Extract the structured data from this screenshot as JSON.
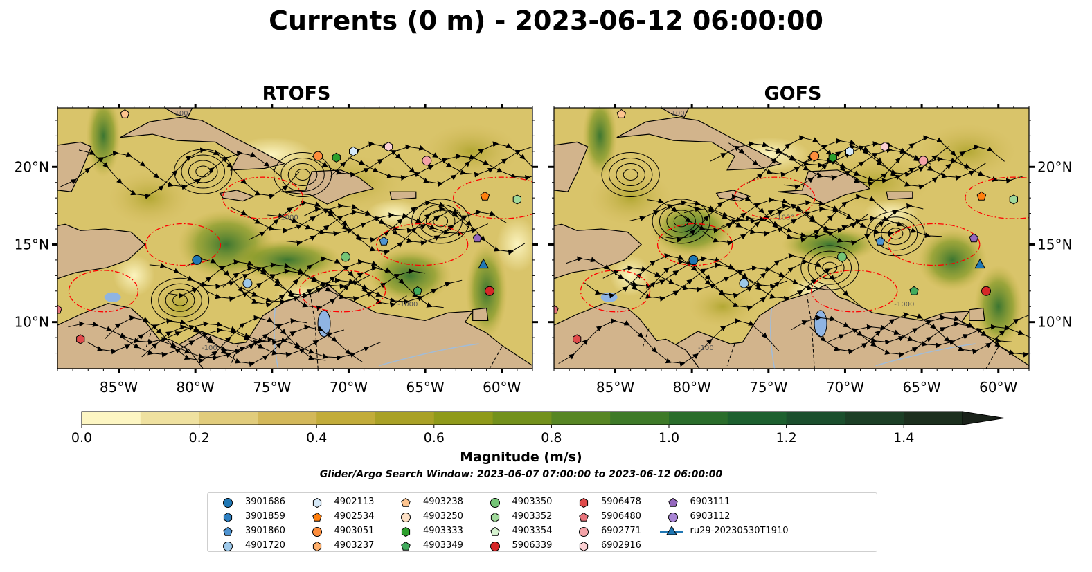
{
  "title": "Currents (0 m) - 2023-06-12 06:00:00",
  "panels": [
    {
      "title": "RTOFS"
    },
    {
      "title": "GOFS"
    }
  ],
  "axes": {
    "x_ticks": [
      "85°W",
      "80°W",
      "75°W",
      "70°W",
      "65°W",
      "60°W"
    ],
    "y_ticks": [
      "20°N",
      "15°N",
      "10°N"
    ]
  },
  "colorbar": {
    "label": "Magnitude (m/s)",
    "ticks": [
      "0.0",
      "0.2",
      "0.4",
      "0.6",
      "0.8",
      "1.0",
      "1.2",
      "1.4"
    ],
    "range": [
      0.0,
      1.5
    ],
    "extend": "max",
    "colors": [
      "#fdf6c3",
      "#efe1a0",
      "#e1cc7c",
      "#d3b85a",
      "#c2ac3a",
      "#a9a126",
      "#8f9a1a",
      "#73911c",
      "#578624",
      "#3e7a28",
      "#2a6d2b",
      "#1d602f",
      "#1b4f2d",
      "#1c3f26",
      "#1c2f1e",
      "#1a221a"
    ]
  },
  "search_window": "Glider/Argo Search Window: 2023-06-07 07:00:00 to 2023-06-12 06:00:00",
  "contour_labels": [
    "-100",
    "-1000",
    "-1000",
    "-100"
  ],
  "map_colors": {
    "land": "#d2b48c",
    "lake": "#8fb4e3",
    "river": "#a3bcd6",
    "ocean_low": "#fdf6c3",
    "ocean_mid": "#c8b040",
    "ocean_high": "#2f7a30",
    "eddy_line": "#ff0000"
  },
  "legend": [
    {
      "id": "3901686",
      "marker": "circle",
      "color": "#1f77b4"
    },
    {
      "id": "3901859",
      "marker": "hexagon",
      "color": "#2e7fc0"
    },
    {
      "id": "3901860",
      "marker": "pentagon",
      "color": "#4f93d0"
    },
    {
      "id": "4901720",
      "marker": "circle",
      "color": "#9ec9ea"
    },
    {
      "id": "4902113",
      "marker": "hexagon",
      "color": "#d6e9f8"
    },
    {
      "id": "4902534",
      "marker": "pentagon",
      "color": "#ff7f0e"
    },
    {
      "id": "4903051",
      "marker": "circle",
      "color": "#fd8d3c"
    },
    {
      "id": "4903237",
      "marker": "hexagon",
      "color": "#fdae6b"
    },
    {
      "id": "4903238",
      "marker": "pentagon",
      "color": "#fdc48f"
    },
    {
      "id": "4903250",
      "marker": "circle",
      "color": "#fde0c5"
    },
    {
      "id": "4903333",
      "marker": "hexagon",
      "color": "#2ca02c"
    },
    {
      "id": "4903349",
      "marker": "pentagon",
      "color": "#41ab5d"
    },
    {
      "id": "4903350",
      "marker": "circle",
      "color": "#74c476"
    },
    {
      "id": "4903352",
      "marker": "hexagon",
      "color": "#a1d99b"
    },
    {
      "id": "4903354",
      "marker": "pentagon",
      "color": "#d5f2cf"
    },
    {
      "id": "5906339",
      "marker": "circle",
      "color": "#d62728"
    },
    {
      "id": "5906478",
      "marker": "hexagon",
      "color": "#e04b4b"
    },
    {
      "id": "5906480",
      "marker": "pentagon",
      "color": "#e8747c"
    },
    {
      "id": "6902771",
      "marker": "circle",
      "color": "#f4a3a8"
    },
    {
      "id": "6902916",
      "marker": "hexagon",
      "color": "#fbcfd2"
    },
    {
      "id": "6903111",
      "marker": "pentagon",
      "color": "#9467bd"
    },
    {
      "id": "6903112",
      "marker": "circle",
      "color": "#a884d4"
    },
    {
      "id": "ru29-20230530T1910",
      "marker": "triangle-line",
      "color": "#1f77b4"
    }
  ],
  "map_markers": [
    {
      "legend_id": "3901686",
      "lon": -79.9,
      "lat": 14.0
    },
    {
      "legend_id": "3901860",
      "lon": -67.7,
      "lat": 15.2
    },
    {
      "legend_id": "4901720",
      "lon": -76.6,
      "lat": 12.5
    },
    {
      "legend_id": "4902113",
      "lon": -69.7,
      "lat": 21.0
    },
    {
      "legend_id": "4902534",
      "lon": -61.1,
      "lat": 18.1
    },
    {
      "legend_id": "4903051",
      "lon": -72.0,
      "lat": 20.7
    },
    {
      "legend_id": "4903238",
      "lon": -84.6,
      "lat": 23.4
    },
    {
      "legend_id": "4903333",
      "lon": -70.8,
      "lat": 20.6
    },
    {
      "legend_id": "4903349",
      "lon": -65.5,
      "lat": 12.0
    },
    {
      "legend_id": "4903350",
      "lon": -70.2,
      "lat": 14.2
    },
    {
      "legend_id": "4903352",
      "lon": -59.0,
      "lat": 17.9
    },
    {
      "legend_id": "5906339",
      "lon": -60.8,
      "lat": 12.0
    },
    {
      "legend_id": "5906478",
      "lon": -87.5,
      "lat": 8.9
    },
    {
      "legend_id": "5906480",
      "lon": -89.0,
      "lat": 10.8
    },
    {
      "legend_id": "6902771",
      "lon": -64.9,
      "lat": 20.4
    },
    {
      "legend_id": "6902916",
      "lon": -67.4,
      "lat": 21.3
    },
    {
      "legend_id": "6903111",
      "lon": -61.6,
      "lat": 15.4
    },
    {
      "legend_id": "ru29-20230530T1910",
      "lon": -61.2,
      "lat": 13.7
    }
  ]
}
